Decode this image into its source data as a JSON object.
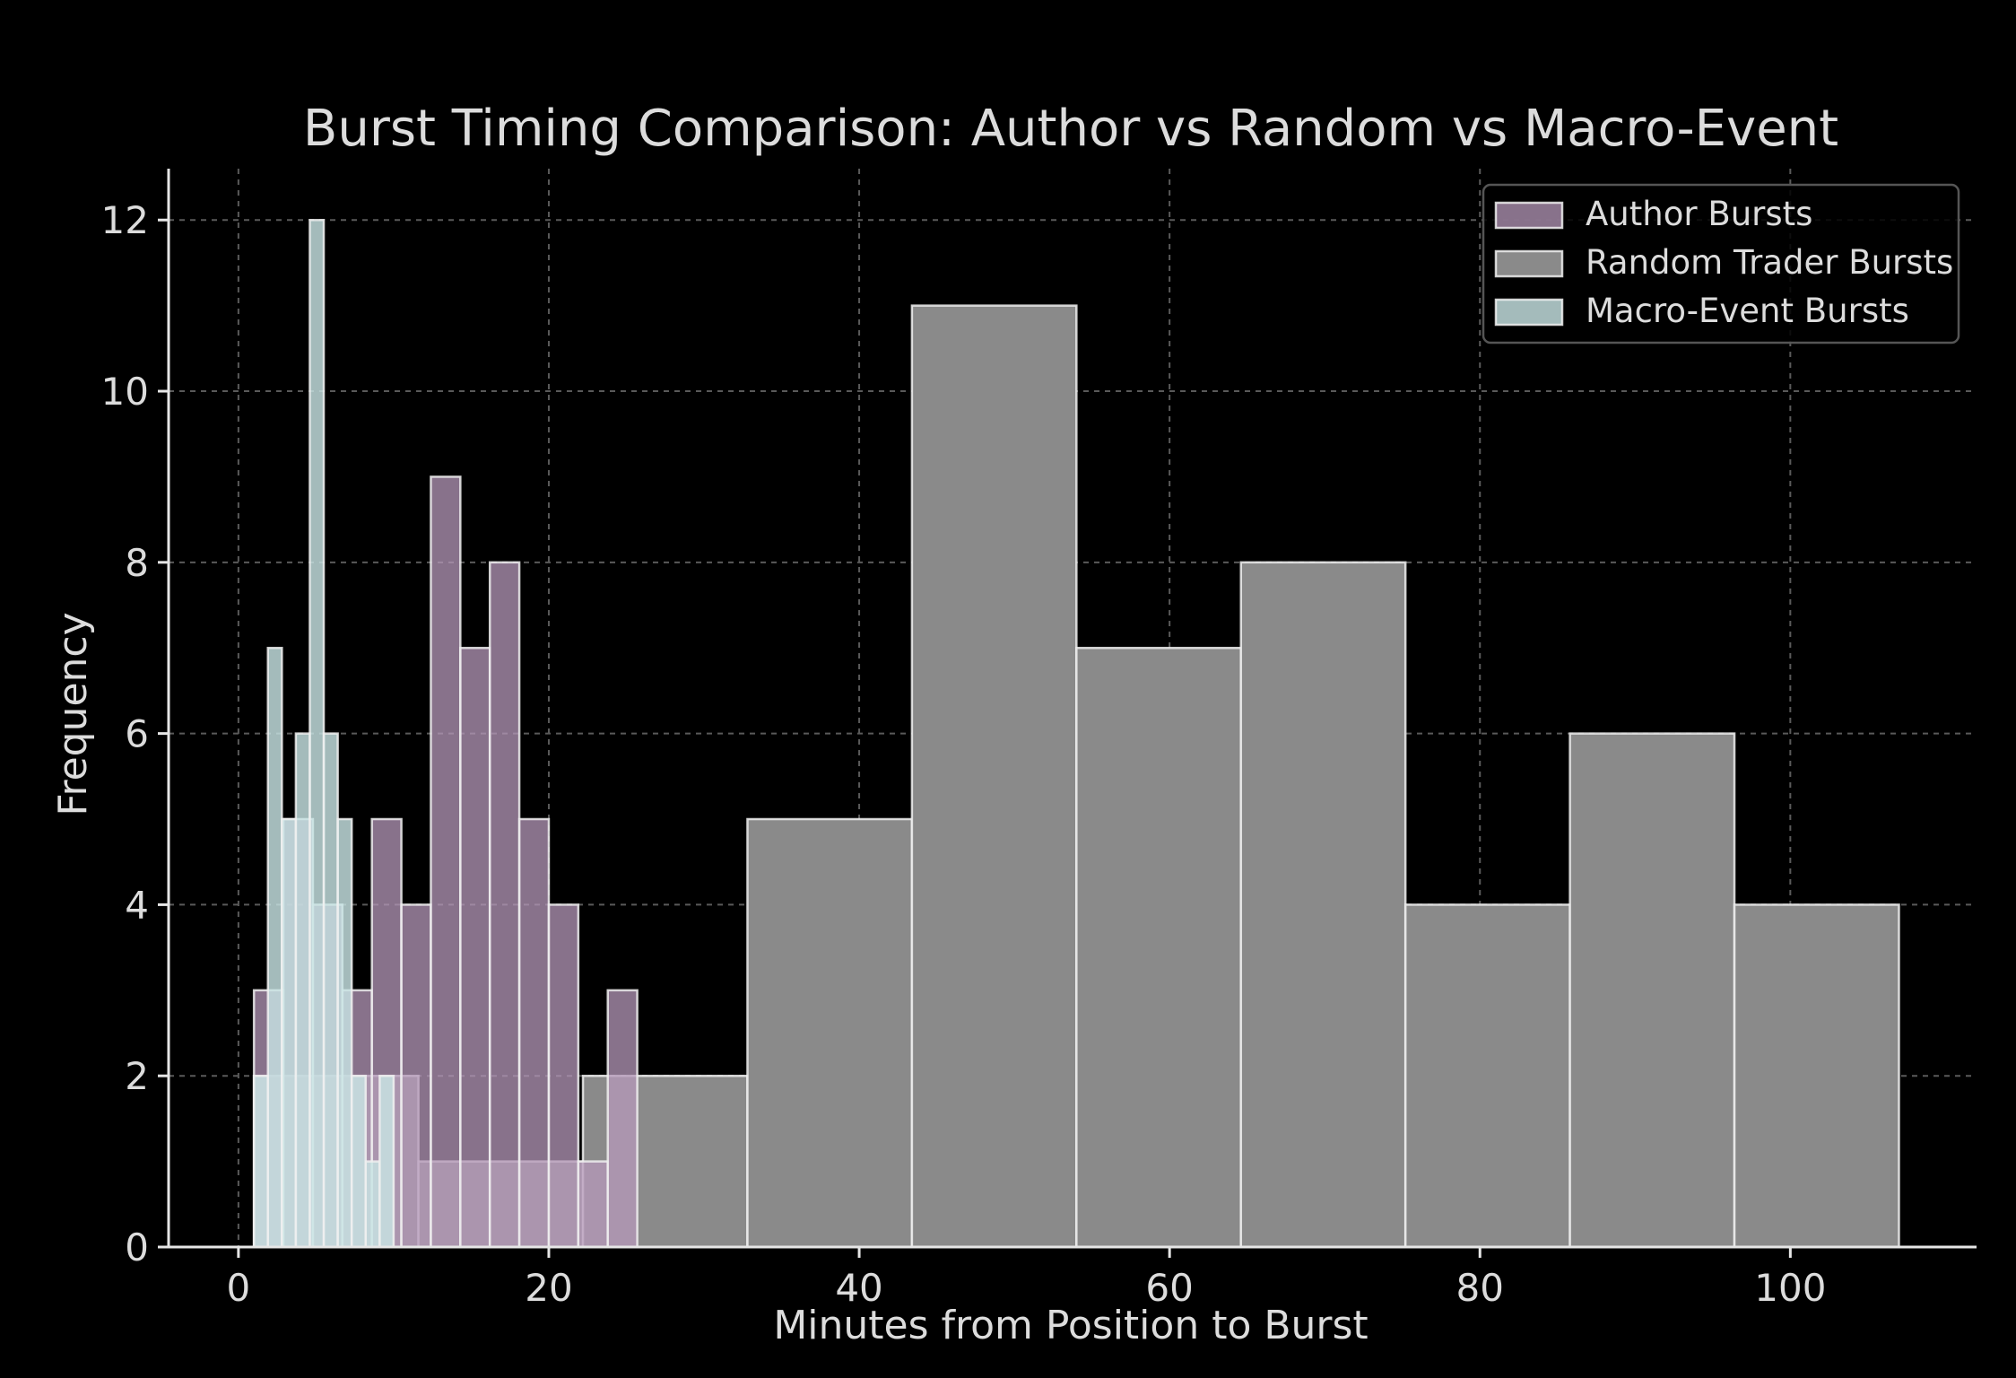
{
  "chart_data": {
    "type": "histogram",
    "title": "Burst Timing Comparison: Author vs Random vs Macro-Event",
    "xlabel": "Minutes from Position to Burst",
    "ylabel": "Frequency",
    "xlim": [
      -4.5,
      112
    ],
    "ylim": [
      0,
      12.6
    ],
    "xticks": [
      0,
      20,
      40,
      60,
      80,
      100
    ],
    "yticks": [
      0,
      2,
      4,
      6,
      8,
      10,
      12
    ],
    "grid": true,
    "legend_position": "top-right",
    "series": [
      {
        "name": "Random Trader Bursts",
        "color": "#8a8a8a",
        "opacity": 1.0,
        "bins": [
          {
            "x0": 1.0,
            "x1": 11.6,
            "count": 2
          },
          {
            "x0": 11.6,
            "x1": 22.2,
            "count": 1
          },
          {
            "x0": 22.2,
            "x1": 32.8,
            "count": 2
          },
          {
            "x0": 32.8,
            "x1": 43.4,
            "count": 5
          },
          {
            "x0": 43.4,
            "x1": 54.0,
            "count": 11
          },
          {
            "x0": 54.0,
            "x1": 64.6,
            "count": 7
          },
          {
            "x0": 64.6,
            "x1": 75.2,
            "count": 8
          },
          {
            "x0": 75.2,
            "x1": 85.8,
            "count": 4
          },
          {
            "x0": 85.8,
            "x1": 96.4,
            "count": 6
          },
          {
            "x0": 96.4,
            "x1": 107.0,
            "count": 4
          }
        ]
      },
      {
        "name": "Author Bursts",
        "color": "#b698ba",
        "opacity": 0.75,
        "bins": [
          {
            "x0": 1.0,
            "x1": 2.9,
            "count": 3
          },
          {
            "x0": 2.9,
            "x1": 4.8,
            "count": 5
          },
          {
            "x0": 4.8,
            "x1": 6.7,
            "count": 4
          },
          {
            "x0": 6.7,
            "x1": 8.6,
            "count": 3
          },
          {
            "x0": 8.6,
            "x1": 10.5,
            "count": 5
          },
          {
            "x0": 10.5,
            "x1": 12.4,
            "count": 4
          },
          {
            "x0": 12.4,
            "x1": 14.3,
            "count": 9
          },
          {
            "x0": 14.3,
            "x1": 16.2,
            "count": 7
          },
          {
            "x0": 16.2,
            "x1": 18.1,
            "count": 8
          },
          {
            "x0": 18.1,
            "x1": 20.0,
            "count": 5
          },
          {
            "x0": 20.0,
            "x1": 21.9,
            "count": 4
          },
          {
            "x0": 21.9,
            "x1": 23.8,
            "count": 1
          },
          {
            "x0": 23.8,
            "x1": 25.7,
            "count": 3
          }
        ]
      },
      {
        "name": "Macro-Event Bursts",
        "color": "#c8e4e4",
        "opacity": 0.82,
        "bins": [
          {
            "x0": 1.0,
            "x1": 1.9,
            "count": 2
          },
          {
            "x0": 1.9,
            "x1": 2.8,
            "count": 7
          },
          {
            "x0": 2.8,
            "x1": 3.7,
            "count": 5
          },
          {
            "x0": 3.7,
            "x1": 4.6,
            "count": 6
          },
          {
            "x0": 4.6,
            "x1": 5.5,
            "count": 12
          },
          {
            "x0": 5.5,
            "x1": 6.4,
            "count": 6
          },
          {
            "x0": 6.4,
            "x1": 7.3,
            "count": 5
          },
          {
            "x0": 7.3,
            "x1": 8.2,
            "count": 2
          },
          {
            "x0": 8.2,
            "x1": 9.1,
            "count": 1
          },
          {
            "x0": 9.1,
            "x1": 10.0,
            "count": 2
          }
        ]
      }
    ],
    "legend_order": [
      "Author Bursts",
      "Random Trader Bursts",
      "Macro-Event Bursts"
    ]
  },
  "colors": {
    "background": "#000000",
    "text": "#dcdcdc",
    "axis": "#e6e6e6",
    "grid": "#5a5a5a",
    "bar_edge": "#f0f0f0"
  }
}
